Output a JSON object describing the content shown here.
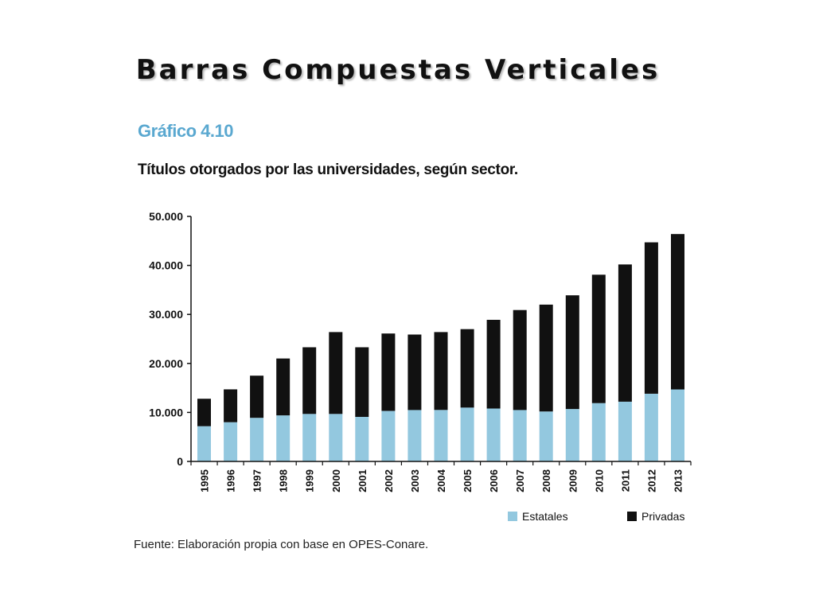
{
  "slide": {
    "title": "Barras Compuestas Verticales"
  },
  "figure": {
    "label": "Gráfico 4.10",
    "title": "Títulos otorgados por las universidades, según sector.",
    "source": "Fuente: Elaboración propia con base en OPES-Conare."
  },
  "chart_data": {
    "type": "bar",
    "stacked": true,
    "categories": [
      "1995",
      "1996",
      "1997",
      "1998",
      "1999",
      "2000",
      "2001",
      "2002",
      "2003",
      "2004",
      "2005",
      "2006",
      "2007",
      "2008",
      "2009",
      "2010",
      "2011",
      "2012",
      "2013"
    ],
    "series": [
      {
        "name": "Estatales",
        "color": "#93c8df",
        "values": [
          7200,
          8000,
          8900,
          9400,
          9700,
          9700,
          9100,
          10300,
          10500,
          10500,
          11000,
          10800,
          10500,
          10200,
          10700,
          11900,
          12200,
          13800,
          14700
        ]
      },
      {
        "name": "Privadas",
        "color": "#111111",
        "values": [
          5600,
          6700,
          8600,
          11600,
          13600,
          16700,
          14200,
          15800,
          15400,
          15900,
          16000,
          18100,
          20400,
          21800,
          23200,
          26200,
          28000,
          30900,
          31700
        ]
      }
    ],
    "yticks": [
      "0",
      "10.000",
      "20.000",
      "30.000",
      "40.000",
      "50.000"
    ],
    "ylim": [
      0,
      50000
    ],
    "xlabel": "",
    "ylabel": "",
    "legend_position": "bottom-right",
    "grid": false
  }
}
